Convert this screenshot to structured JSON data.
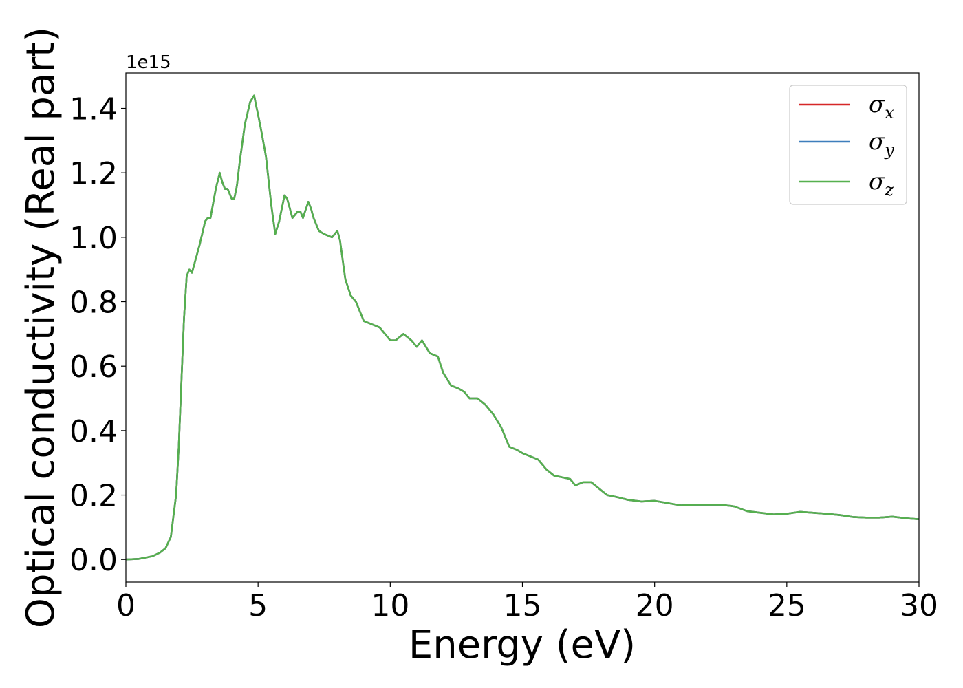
{
  "chart_data": {
    "type": "line",
    "title": "",
    "xlabel": "Energy (eV)",
    "ylabel": "Optical conductivity (Real part)",
    "y_offset_text": "1e15",
    "xlim": [
      0,
      30
    ],
    "ylim": [
      -0.07,
      1.51
    ],
    "xticks": [
      0,
      5,
      10,
      15,
      20,
      25,
      30
    ],
    "xtick_labels": [
      "0",
      "5",
      "10",
      "15",
      "20",
      "25",
      "30"
    ],
    "yticks": [
      0.0,
      0.2,
      0.4,
      0.6,
      0.8,
      1.0,
      1.2,
      1.4
    ],
    "ytick_labels": [
      "0.0",
      "0.2",
      "0.4",
      "0.6",
      "0.8",
      "1.0",
      "1.2",
      "1.4"
    ],
    "grid": false,
    "legend": {
      "position": "top-right",
      "entries": [
        {
          "symbol": "σ",
          "subscript": "x",
          "color": "#d62728"
        },
        {
          "symbol": "σ",
          "subscript": "y",
          "color": "#3d7ebc"
        },
        {
          "symbol": "σ",
          "subscript": "z",
          "color": "#56b04f"
        }
      ]
    },
    "x": [
      0,
      0.5,
      1.0,
      1.3,
      1.5,
      1.7,
      1.9,
      2.0,
      2.1,
      2.2,
      2.3,
      2.4,
      2.5,
      2.6,
      2.8,
      3.0,
      3.1,
      3.2,
      3.4,
      3.55,
      3.65,
      3.75,
      3.85,
      4.0,
      4.1,
      4.2,
      4.3,
      4.5,
      4.7,
      4.85,
      5.0,
      5.1,
      5.3,
      5.5,
      5.65,
      5.8,
      6.0,
      6.1,
      6.3,
      6.5,
      6.6,
      6.7,
      6.9,
      7.0,
      7.1,
      7.3,
      7.5,
      7.8,
      8.0,
      8.1,
      8.3,
      8.5,
      8.7,
      9.0,
      9.3,
      9.6,
      9.8,
      10.0,
      10.2,
      10.5,
      10.8,
      11.0,
      11.2,
      11.5,
      11.8,
      12.0,
      12.3,
      12.6,
      12.8,
      13.0,
      13.3,
      13.6,
      13.9,
      14.2,
      14.5,
      14.8,
      15.0,
      15.3,
      15.6,
      15.9,
      16.2,
      16.5,
      16.8,
      17.0,
      17.3,
      17.6,
      17.9,
      18.2,
      18.5,
      19.0,
      19.5,
      20.0,
      20.5,
      21.0,
      21.5,
      22.0,
      22.5,
      23.0,
      23.5,
      24.0,
      24.5,
      25.0,
      25.5,
      26.0,
      26.5,
      27.0,
      27.5,
      28.0,
      28.5,
      29.0,
      29.5,
      30.0
    ],
    "series": [
      {
        "name": "σ_x",
        "color": "#d62728",
        "values": [
          0.0,
          0.002,
          0.01,
          0.022,
          0.035,
          0.07,
          0.2,
          0.35,
          0.55,
          0.75,
          0.88,
          0.9,
          0.89,
          0.92,
          0.98,
          1.05,
          1.06,
          1.06,
          1.15,
          1.2,
          1.17,
          1.15,
          1.15,
          1.12,
          1.12,
          1.16,
          1.23,
          1.35,
          1.42,
          1.44,
          1.38,
          1.34,
          1.25,
          1.1,
          1.01,
          1.05,
          1.13,
          1.12,
          1.06,
          1.08,
          1.08,
          1.06,
          1.11,
          1.09,
          1.06,
          1.02,
          1.01,
          1.0,
          1.02,
          0.99,
          0.87,
          0.82,
          0.8,
          0.74,
          0.73,
          0.72,
          0.7,
          0.68,
          0.68,
          0.7,
          0.68,
          0.66,
          0.68,
          0.64,
          0.63,
          0.58,
          0.54,
          0.53,
          0.52,
          0.5,
          0.5,
          0.48,
          0.45,
          0.41,
          0.35,
          0.34,
          0.33,
          0.32,
          0.31,
          0.28,
          0.26,
          0.255,
          0.25,
          0.23,
          0.24,
          0.24,
          0.22,
          0.2,
          0.195,
          0.185,
          0.18,
          0.182,
          0.175,
          0.168,
          0.17,
          0.17,
          0.17,
          0.165,
          0.15,
          0.145,
          0.14,
          0.142,
          0.148,
          0.145,
          0.142,
          0.138,
          0.132,
          0.13,
          0.13,
          0.133,
          0.128,
          0.125
        ]
      },
      {
        "name": "σ_y",
        "color": "#3d7ebc",
        "values": [
          0.0,
          0.002,
          0.01,
          0.022,
          0.035,
          0.07,
          0.2,
          0.35,
          0.55,
          0.75,
          0.88,
          0.9,
          0.89,
          0.92,
          0.98,
          1.05,
          1.06,
          1.06,
          1.15,
          1.2,
          1.17,
          1.15,
          1.15,
          1.12,
          1.12,
          1.16,
          1.23,
          1.35,
          1.42,
          1.44,
          1.38,
          1.34,
          1.25,
          1.1,
          1.01,
          1.05,
          1.13,
          1.12,
          1.06,
          1.08,
          1.08,
          1.06,
          1.11,
          1.09,
          1.06,
          1.02,
          1.01,
          1.0,
          1.02,
          0.99,
          0.87,
          0.82,
          0.8,
          0.74,
          0.73,
          0.72,
          0.7,
          0.68,
          0.68,
          0.7,
          0.68,
          0.66,
          0.68,
          0.64,
          0.63,
          0.58,
          0.54,
          0.53,
          0.52,
          0.5,
          0.5,
          0.48,
          0.45,
          0.41,
          0.35,
          0.34,
          0.33,
          0.32,
          0.31,
          0.28,
          0.26,
          0.255,
          0.25,
          0.23,
          0.24,
          0.24,
          0.22,
          0.2,
          0.195,
          0.185,
          0.18,
          0.182,
          0.175,
          0.168,
          0.17,
          0.17,
          0.17,
          0.165,
          0.15,
          0.145,
          0.14,
          0.142,
          0.148,
          0.145,
          0.142,
          0.138,
          0.132,
          0.13,
          0.13,
          0.133,
          0.128,
          0.125
        ]
      },
      {
        "name": "σ_z",
        "color": "#56b04f",
        "values": [
          0.0,
          0.002,
          0.01,
          0.022,
          0.035,
          0.07,
          0.2,
          0.35,
          0.55,
          0.75,
          0.88,
          0.9,
          0.89,
          0.92,
          0.98,
          1.05,
          1.06,
          1.06,
          1.15,
          1.2,
          1.17,
          1.15,
          1.15,
          1.12,
          1.12,
          1.16,
          1.23,
          1.35,
          1.42,
          1.44,
          1.38,
          1.34,
          1.25,
          1.1,
          1.01,
          1.05,
          1.13,
          1.12,
          1.06,
          1.08,
          1.08,
          1.06,
          1.11,
          1.09,
          1.06,
          1.02,
          1.01,
          1.0,
          1.02,
          0.99,
          0.87,
          0.82,
          0.8,
          0.74,
          0.73,
          0.72,
          0.7,
          0.68,
          0.68,
          0.7,
          0.68,
          0.66,
          0.68,
          0.64,
          0.63,
          0.58,
          0.54,
          0.53,
          0.52,
          0.5,
          0.5,
          0.48,
          0.45,
          0.41,
          0.35,
          0.34,
          0.33,
          0.32,
          0.31,
          0.28,
          0.26,
          0.255,
          0.25,
          0.23,
          0.24,
          0.24,
          0.22,
          0.2,
          0.195,
          0.185,
          0.18,
          0.182,
          0.175,
          0.168,
          0.17,
          0.17,
          0.17,
          0.165,
          0.15,
          0.145,
          0.14,
          0.142,
          0.148,
          0.145,
          0.142,
          0.138,
          0.132,
          0.13,
          0.13,
          0.133,
          0.128,
          0.125
        ]
      }
    ]
  }
}
